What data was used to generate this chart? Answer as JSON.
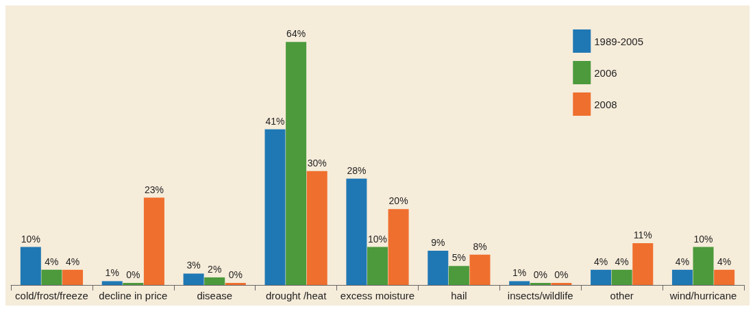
{
  "chart_data": {
    "type": "bar",
    "categories": [
      "cold/frost/freeze",
      "decline in price",
      "disease",
      "drought /heat",
      "excess moisture",
      "hail",
      "insects/wildlife",
      "other",
      "wind/hurricane"
    ],
    "series": [
      {
        "name": "1989-2005",
        "color": "#1f78b4",
        "values": [
          10,
          1,
          3,
          41,
          28,
          9,
          1,
          4,
          4
        ],
        "value_labels": [
          "10%",
          "1%",
          "3%",
          "41%",
          "28%",
          "9%",
          "1%",
          "4%",
          "4%"
        ]
      },
      {
        "name": "2006",
        "color": "#4c9a3c",
        "values": [
          4,
          0,
          2,
          64,
          10,
          5,
          0,
          4,
          10
        ],
        "value_labels": [
          "4%",
          "0%",
          "2%",
          "64%",
          "10%",
          "5%",
          "0%",
          "4%",
          "10%"
        ]
      },
      {
        "name": "2008",
        "color": "#ef6f2e",
        "values": [
          4,
          23,
          0,
          30,
          20,
          8,
          0,
          11,
          4
        ],
        "value_labels": [
          "4%",
          "23%",
          "0%",
          "30%",
          "20%",
          "8%",
          "0%",
          "11%",
          "4%"
        ]
      }
    ],
    "legend": "top right",
    "grid": false
  }
}
